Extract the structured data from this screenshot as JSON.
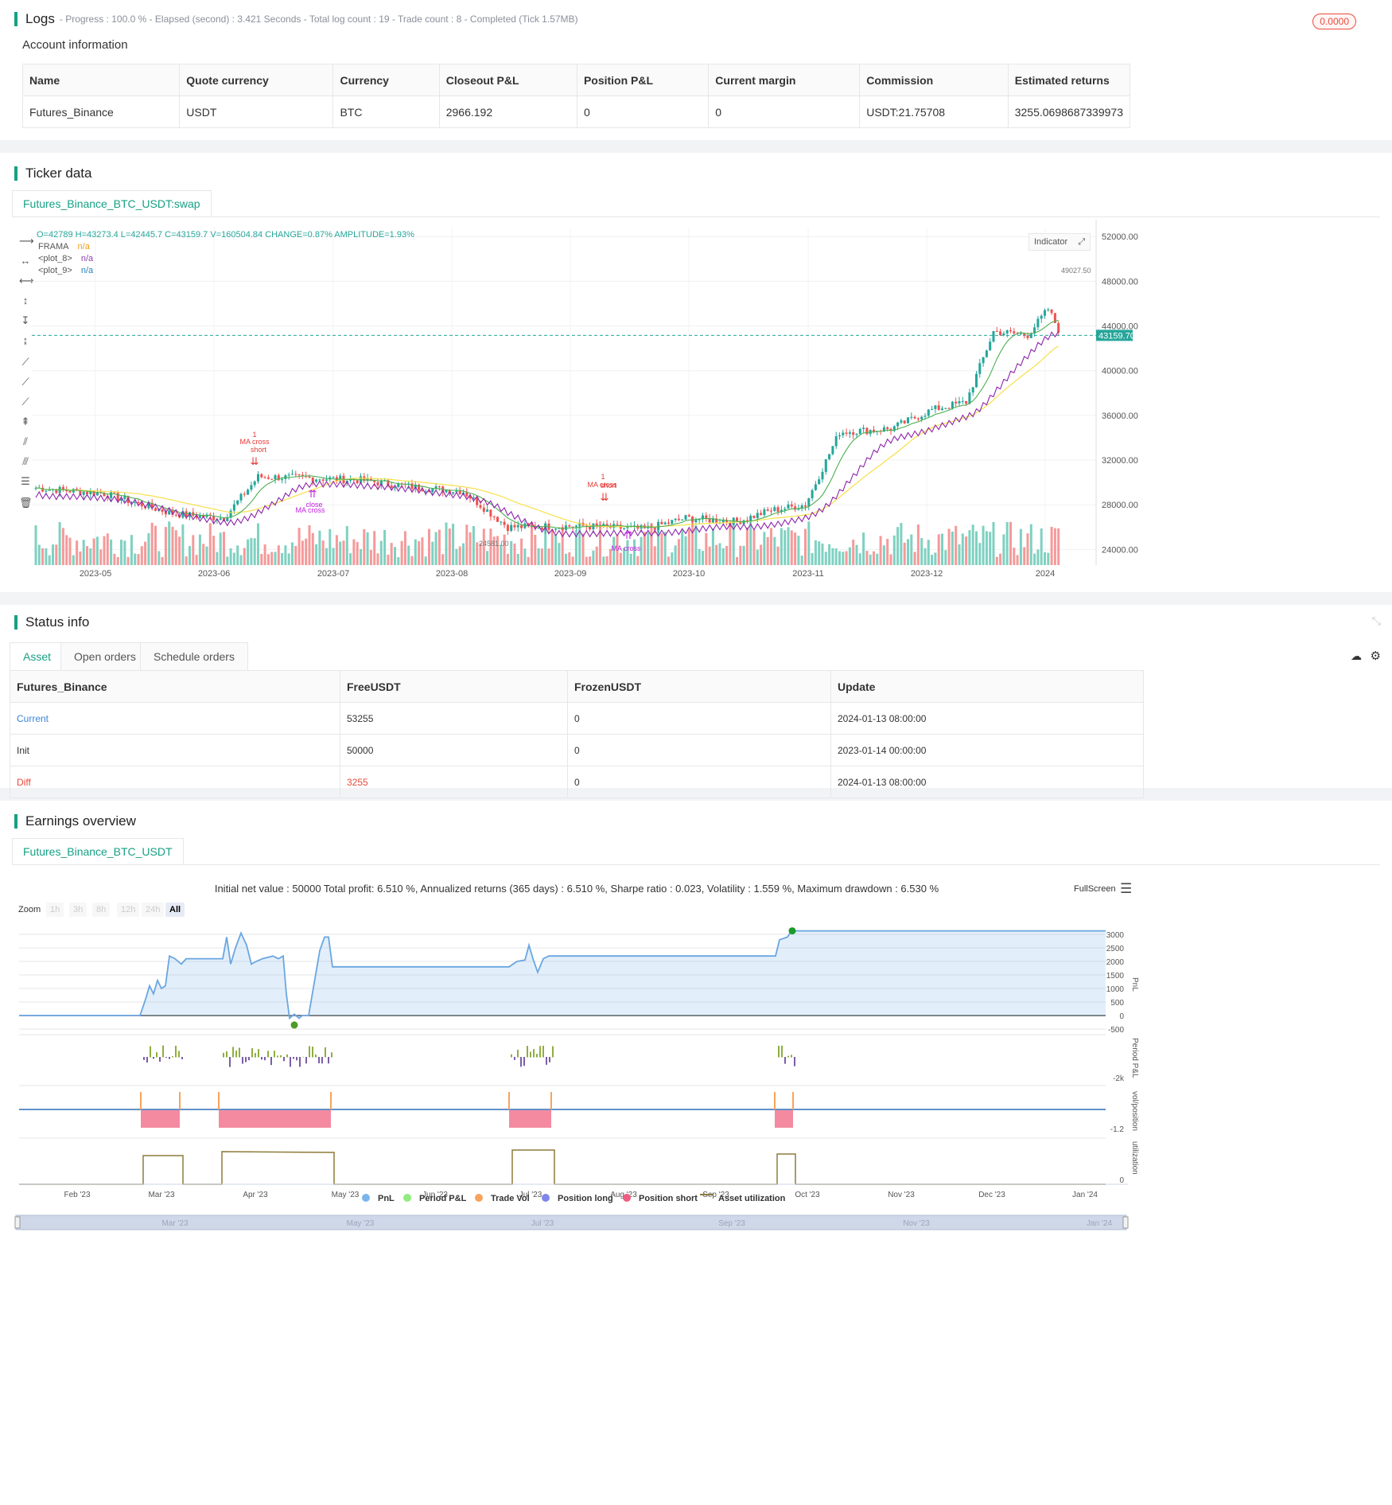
{
  "logs": {
    "title": "Logs",
    "meta": "- Progress : 100.0 % - Elapsed (second) : 3.421 Seconds - Total log count : 19 - Trade count : 8 - Completed (Tick 1.57MB)",
    "badge": "0.0000",
    "account_title": "Account information",
    "columns": [
      "Name",
      "Quote currency",
      "Currency",
      "Closeout P&L",
      "Position P&L",
      "Current margin",
      "Commission",
      "Estimated returns"
    ],
    "row": [
      "Futures_Binance",
      "USDT",
      "BTC",
      "2966.192",
      "0",
      "0",
      "USDT:21.75708",
      "3255.0698687339973"
    ]
  },
  "ticker": {
    "title": "Ticker data",
    "tab": "Futures_Binance_BTC_USDT:swap",
    "ohlc": "O=42789 H=43273.4 L=42445.7 C=43159.7 V=160504.84 CHANGE=0.87% AMPLITUDE=1.93%",
    "legend": [
      {
        "name": "FRAMA",
        "value": "n/a",
        "color": "#f39c12"
      },
      {
        "name": "<plot_8>",
        "value": "n/a",
        "color": "#8e44ad"
      },
      {
        "name": "<plot_9>",
        "value": "n/a",
        "color": "#2980b9"
      }
    ],
    "indicator_button": "Indicator",
    "price_labels": [
      "52000.00",
      "48000.00",
      "44000.00",
      "40000.00",
      "36000.00",
      "32000.00",
      "28000.00",
      "24000.00"
    ],
    "date_labels": [
      "2023-05",
      "2023-06",
      "2023-07",
      "2023-08",
      "2023-09",
      "2023-10",
      "2023-11",
      "2023-12",
      "2024"
    ],
    "last_price": "43159.70",
    "high_label": "49027.50",
    "low_label": "24581.00",
    "annotations": [
      "1",
      "MA cross",
      "short",
      "close",
      "MA cross",
      "1",
      "MA cross",
      "short",
      "MA cross"
    ],
    "colors": {
      "up": "#26a69a",
      "down": "#ef5350",
      "frama": "#f7e04a",
      "plot8": "#8e24aa",
      "plot9": "#4caf50"
    }
  },
  "status": {
    "title": "Status info",
    "tabs": [
      "Asset",
      "Open orders",
      "Schedule orders"
    ],
    "columns": [
      "Futures_Binance",
      "FreeUSDT",
      "FrozenUSDT",
      "Update"
    ],
    "rows": [
      [
        "Current",
        "53255",
        "0",
        "2024-01-13 08:00:00"
      ],
      [
        "Init",
        "50000",
        "0",
        "2023-01-14 00:00:00"
      ],
      [
        "Diff",
        "3255",
        "0",
        "2024-01-13 08:00:00"
      ]
    ]
  },
  "earnings": {
    "title": "Earnings overview",
    "tab": "Futures_Binance_BTC_USDT",
    "summary": "Initial net value : 50000 Total profit: 6.510 %, Annualized returns (365 days) : 6.510 %, Sharpe ratio : 0.023, Volatility : 1.559 %, Maximum drawdown : 6.530 %",
    "fullscreen": "FullScreen",
    "zoom_label": "Zoom",
    "zoom_buttons": [
      "1h",
      "3h",
      "8h",
      "12h",
      "24h",
      "All"
    ],
    "pnl_ticks": [
      "3000",
      "2500",
      "2000",
      "1500",
      "1000",
      "500",
      "0",
      "-500"
    ],
    "period_tick": "-2k",
    "vol_tick": "-1.2",
    "util_tick": "0",
    "axis_titles": [
      "PnL",
      "Period P&L",
      "vol/position",
      "utilization"
    ],
    "month_labels": [
      "Feb '23",
      "Mar '23",
      "Apr '23",
      "May '23",
      "Jun '23",
      "Jul '23",
      "Aug '23",
      "Sep '23",
      "Oct '23",
      "Nov '23",
      "Dec '23",
      "Jan '24"
    ],
    "navigator_labels": [
      "Mar '23",
      "May '23",
      "Jul '23",
      "Sep '23",
      "Nov '23",
      "Jan '24"
    ],
    "legend": [
      {
        "name": "PnL",
        "color": "#7cb5ec"
      },
      {
        "name": "Period P&L",
        "color": "#90ed7d"
      },
      {
        "name": "Trade Vol",
        "color": "#f7a35c"
      },
      {
        "name": "Position long",
        "color": "#8085e9"
      },
      {
        "name": "Position short",
        "color": "#f15c80"
      },
      {
        "name": "Asset utilization",
        "color": "#8d7b3a"
      }
    ]
  }
}
